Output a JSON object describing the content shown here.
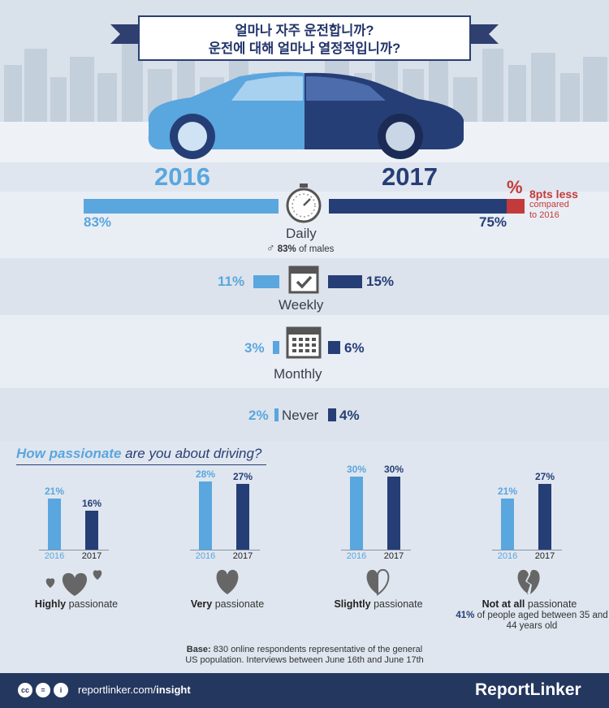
{
  "title": {
    "line1": "얼마나 자주 운전합니까?",
    "line2": "운전에 대해 얼마나 열정적입니까?"
  },
  "years": {
    "a": "2016",
    "b": "2017"
  },
  "frequency": {
    "daily": {
      "label": "Daily",
      "v2016": "83%",
      "v2017": "75%",
      "male_note_pct": "83%",
      "male_note_text": "of males"
    },
    "weekly": {
      "label": "Weekly",
      "v2016": "11%",
      "v2017": "15%"
    },
    "monthly": {
      "label": "Monthly",
      "v2016": "3%",
      "v2017": "6%"
    },
    "never": {
      "label": "Never",
      "v2016": "2%",
      "v2017": "4%"
    }
  },
  "change_note": {
    "symbol": "%",
    "headline": "8pts less",
    "line2": "compared",
    "line3": "to 2016"
  },
  "passion": {
    "title_bold": "How passionate",
    "title_rest": "are you about driving?",
    "groups": [
      {
        "bold": "Highly",
        "rest": "passionate",
        "v2016": "21%",
        "v2017": "16%",
        "n2016": 21,
        "n2017": 16
      },
      {
        "bold": "Very",
        "rest": "passionate",
        "v2016": "28%",
        "v2017": "27%",
        "n2016": 28,
        "n2017": 27
      },
      {
        "bold": "Slightly",
        "rest": "passionate",
        "v2016": "30%",
        "v2017": "30%",
        "n2016": 30,
        "n2017": 30
      },
      {
        "bold": "Not at all",
        "rest": "passionate",
        "v2016": "21%",
        "v2017": "27%",
        "n2016": 21,
        "n2017": 27
      }
    ],
    "note_pct": "41%",
    "note_text": "of people aged between 35 and 44 years old"
  },
  "base": {
    "label": "Base:",
    "text1": "830 online respondents representative of the general",
    "text2": "US population. Interviews between June 16th and June 17th"
  },
  "footer": {
    "site_plain": "reportlinker.com/",
    "site_bold": "insight",
    "brand": "ReportLinker"
  },
  "colors": {
    "y2016": "#5aa6de",
    "y2017": "#263e76",
    "accent_red": "#c33a3a"
  }
}
